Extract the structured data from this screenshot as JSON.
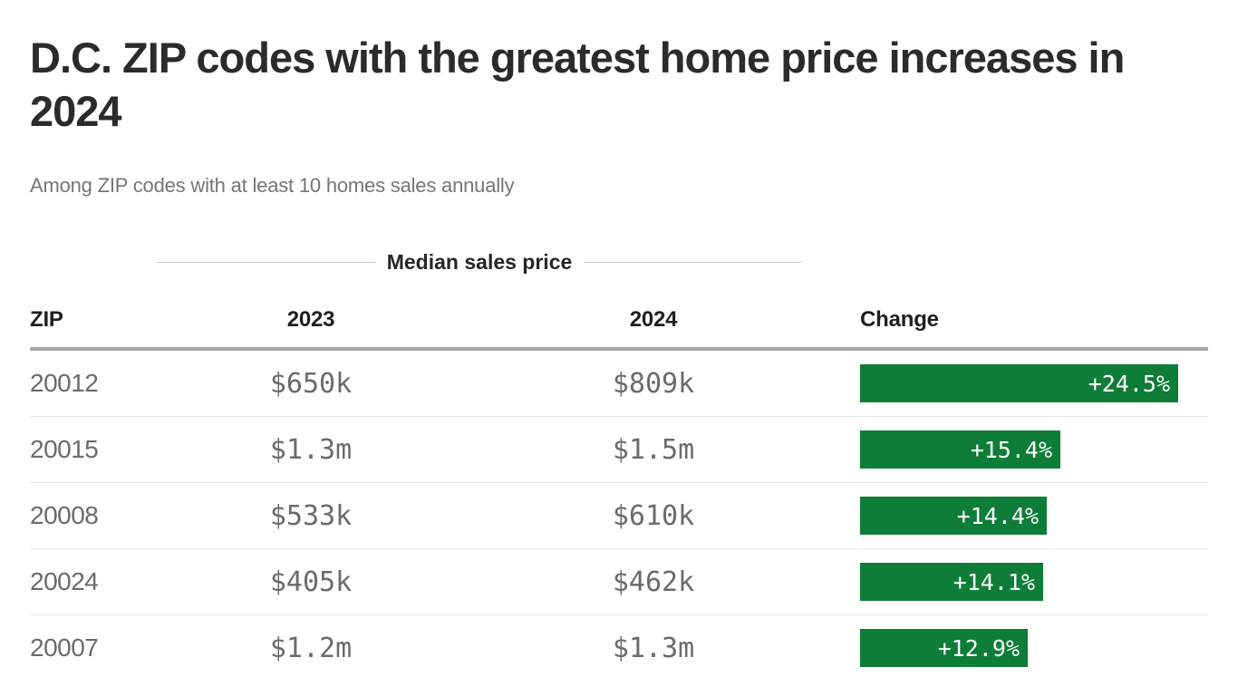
{
  "chart_data": {
    "type": "table",
    "title": "D.C. ZIP codes with the greatest home price increases in 2024",
    "subtitle": "Among ZIP codes with at least 10 homes sales annually",
    "group_header": "Median sales price",
    "columns": [
      "ZIP",
      "2023",
      "2024",
      "Change"
    ],
    "rows": [
      {
        "zip": "20012",
        "price_2023": "$650k",
        "price_2024": "$809k",
        "change_label": "+24.5%",
        "change_pct": 24.5
      },
      {
        "zip": "20015",
        "price_2023": "$1.3m",
        "price_2024": "$1.5m",
        "change_label": "+15.4%",
        "change_pct": 15.4
      },
      {
        "zip": "20008",
        "price_2023": "$533k",
        "price_2024": "$610k",
        "change_label": "+14.4%",
        "change_pct": 14.4
      },
      {
        "zip": "20024",
        "price_2023": "$405k",
        "price_2024": "$462k",
        "change_label": "+14.1%",
        "change_pct": 14.1
      },
      {
        "zip": "20007",
        "price_2023": "$1.2m",
        "price_2024": "$1.3m",
        "change_label": "+12.9%",
        "change_pct": 12.9
      }
    ],
    "bar_color": "#0d7d37",
    "bar_series": "Change",
    "value_range": [
      0,
      24.5
    ],
    "legend": "none",
    "grid": "row separators only"
  }
}
